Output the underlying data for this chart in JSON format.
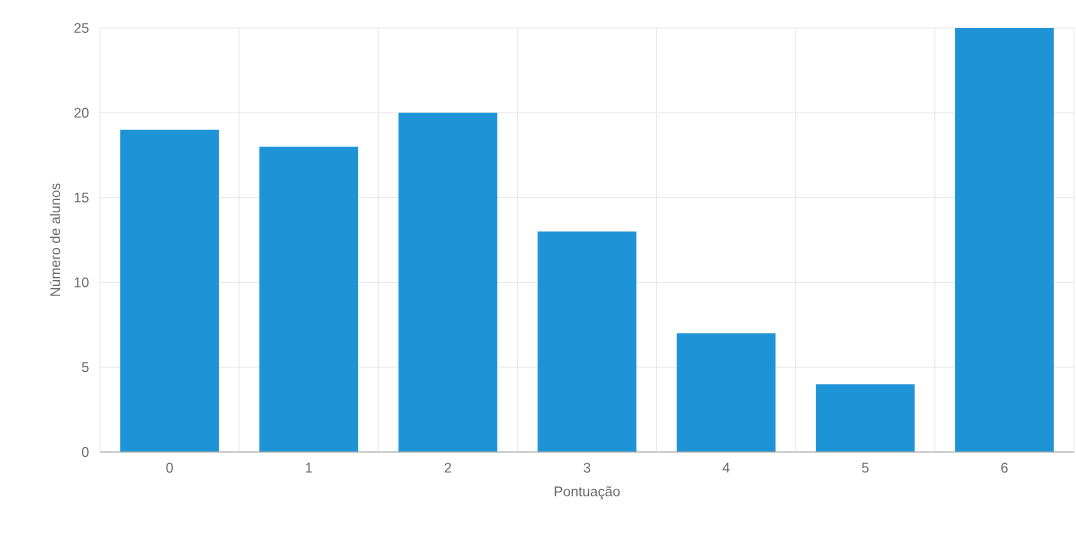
{
  "chart_data": {
    "type": "bar",
    "xlabel": "Pontuação",
    "ylabel": "Número de alunos",
    "categories": [
      "0",
      "1",
      "2",
      "3",
      "4",
      "5",
      "6"
    ],
    "values": [
      19,
      18,
      20,
      13,
      7,
      4,
      25
    ],
    "color": "#1e93d6",
    "ylim": [
      0,
      25
    ],
    "yticks": [
      0,
      5,
      10,
      15,
      20,
      25
    ],
    "grid": true
  }
}
